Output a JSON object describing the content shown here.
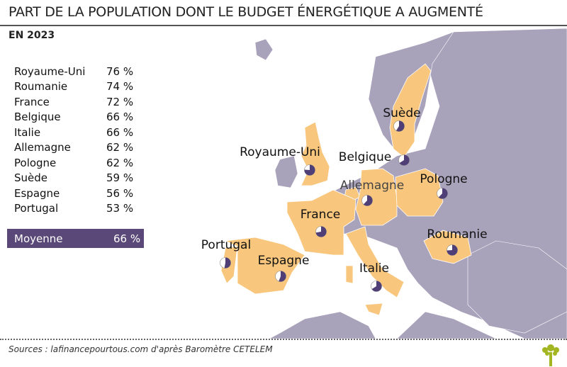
{
  "header": {
    "title": "PART DE LA POPULATION DONT LE BUDGET ÉNERGÉTIQUE A AUGMENTÉ",
    "subtitle": "EN 2023"
  },
  "ranking": [
    {
      "country": "Royaume-Uni",
      "value": "76 %"
    },
    {
      "country": "Roumanie",
      "value": "74 %"
    },
    {
      "country": "France",
      "value": "72 %"
    },
    {
      "country": "Belgique",
      "value": "66 %"
    },
    {
      "country": "Italie",
      "value": "66 %"
    },
    {
      "country": "Allemagne",
      "value": "62 %"
    },
    {
      "country": "Pologne",
      "value": "62 %"
    },
    {
      "country": "Suède",
      "value": "59 %"
    },
    {
      "country": "Espagne",
      "value": "56 %"
    },
    {
      "country": "Portugal",
      "value": "53 %"
    }
  ],
  "average": {
    "label": "Moyenne",
    "value": "66 %"
  },
  "map_labels": {
    "suede": "Suède",
    "royaume_uni": "Royaume-Uni",
    "belgique": "Belgique",
    "allemagne": "Allemagne",
    "pologne": "Pologne",
    "france": "France",
    "roumanie": "Roumanie",
    "portugal": "Portugal",
    "espagne": "Espagne",
    "italie": "Italie"
  },
  "pies": [
    {
      "country": "Royaume-Uni",
      "fraction": 0.76
    },
    {
      "country": "Suède",
      "fraction": 0.59
    },
    {
      "country": "Belgique",
      "fraction": 0.66
    },
    {
      "country": "Allemagne",
      "fraction": 0.62
    },
    {
      "country": "Pologne",
      "fraction": 0.62
    },
    {
      "country": "France",
      "fraction": 0.72
    },
    {
      "country": "Roumanie",
      "fraction": 0.74
    },
    {
      "country": "Portugal",
      "fraction": 0.53
    },
    {
      "country": "Espagne",
      "fraction": 0.56
    },
    {
      "country": "Italie",
      "fraction": 0.66
    }
  ],
  "colors": {
    "land": "#a9a2bb",
    "highlight": "#f8c67c",
    "pie": "#4f3f76",
    "average_bg": "#5a4978"
  },
  "footer": {
    "source": "Sources : lafinancepourtous.com d'après  Baromètre CETELEM"
  }
}
